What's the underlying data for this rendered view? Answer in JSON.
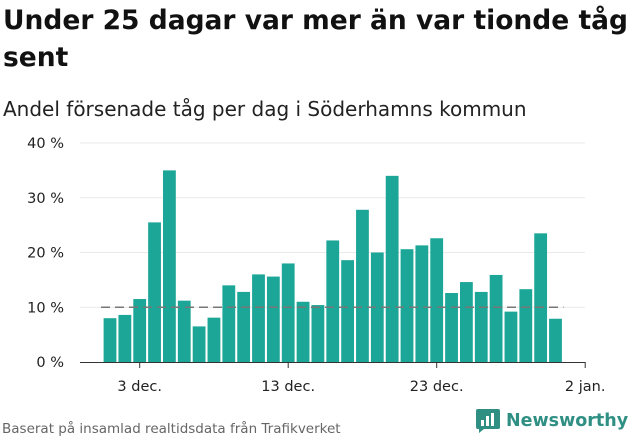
{
  "title": "Under 25 dagar var mer än var tionde tåg sent",
  "subtitle": "Andel försenade tåg per dag i Söderhamns kommun",
  "footer": "Baserat på insamlad realtidsdata från Trafikverket",
  "brand": "Newsworthy",
  "colors": {
    "bar": "#1ba697",
    "reference_line": "#777777",
    "axis": "#333333",
    "text": "#222222",
    "brand": "#2f8f83"
  },
  "chart_data": {
    "type": "bar",
    "title": "Under 25 dagar var mer än var tionde tåg sent",
    "subtitle": "Andel försenade tåg per dag i Söderhamns kommun",
    "x": [
      "2023-12-01",
      "2023-12-02",
      "2023-12-03",
      "2023-12-04",
      "2023-12-05",
      "2023-12-06",
      "2023-12-07",
      "2023-12-08",
      "2023-12-09",
      "2023-12-10",
      "2023-12-11",
      "2023-12-12",
      "2023-12-13",
      "2023-12-14",
      "2023-12-15",
      "2023-12-16",
      "2023-12-17",
      "2023-12-18",
      "2023-12-19",
      "2023-12-20",
      "2023-12-21",
      "2023-12-22",
      "2023-12-23",
      "2023-12-24",
      "2023-12-25",
      "2023-12-26",
      "2023-12-27",
      "2023-12-28",
      "2023-12-29",
      "2023-12-30",
      "2023-12-31"
    ],
    "values": [
      8,
      8.6,
      11.5,
      25.5,
      35,
      11.2,
      6.5,
      8.1,
      14,
      12.8,
      16,
      15.6,
      18,
      11,
      10.4,
      22.2,
      18.6,
      27.8,
      20,
      34,
      20.6,
      21.3,
      22.6,
      12.6,
      14.6,
      12.8,
      15.9,
      9.2,
      13.3,
      23.5,
      7.9
    ],
    "reference_line": 10,
    "ylim": [
      0,
      40
    ],
    "yticks": [
      0,
      10,
      20,
      30,
      40
    ],
    "ytick_labels": [
      "0 %",
      "10 %",
      "20 %",
      "30 %",
      "40 %"
    ],
    "xticks": [
      "2023-12-03",
      "2023-12-13",
      "2023-12-23",
      "2024-01-02"
    ],
    "xtick_labels": [
      "3 dec.",
      "13 dec.",
      "23 dec.",
      "2 jan."
    ],
    "xlabel": "",
    "ylabel": "",
    "grid": true
  }
}
